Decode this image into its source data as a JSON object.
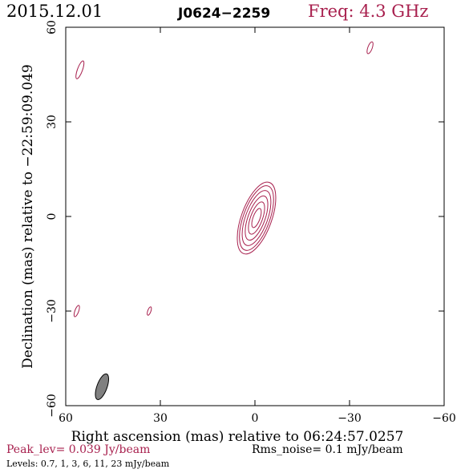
{
  "header": {
    "date": "2015.12.01",
    "source": "J0624−2259",
    "freq": "Freq: 4.3 GHz"
  },
  "footer": {
    "peak": "Peak_lev=  0.039 Jy/beam",
    "rms": "Rms_noise=  0.1 mJy/beam",
    "levels": "Levels: 0.7,   1,   3,   6,  11,  23 mJy/beam"
  },
  "colors": {
    "contour": "#a8204e",
    "beam": "#808080",
    "axis": "#000000"
  },
  "chart_data": {
    "type": "contour",
    "xlabel": "Right ascension (mas) relative to 06:24:57.0257",
    "ylabel": "Declination (mas) relative to −22:59:09.049",
    "xlim": [
      60,
      -60
    ],
    "ylim": [
      -60,
      60
    ],
    "xticks": [
      60,
      30,
      0,
      -30,
      -60
    ],
    "yticks": [
      -60,
      -30,
      0,
      30,
      60
    ],
    "xtick_labels": [
      "60",
      "30",
      "0",
      "−30",
      "−60"
    ],
    "ytick_labels": [
      "−60",
      "−30",
      "0",
      "30",
      "60"
    ],
    "levels_mJy": [
      0.7,
      1,
      3,
      6,
      11,
      23
    ],
    "peak_Jy_per_beam": 0.039,
    "rms_mJy_per_beam": 0.1,
    "main_component": {
      "x": -0.5,
      "y": -0.5,
      "pa_deg": 160,
      "contours": [
        {
          "level": 0.7,
          "a": 12.0,
          "b": 4.8
        },
        {
          "level": 1,
          "a": 10.8,
          "b": 4.2
        },
        {
          "level": 3,
          "a": 9.2,
          "b": 3.5
        },
        {
          "level": 6,
          "a": 7.4,
          "b": 2.7
        },
        {
          "level": 11,
          "a": 5.4,
          "b": 1.9
        },
        {
          "level": 23,
          "a": 3.2,
          "b": 1.1
        }
      ]
    },
    "minor_components": [
      {
        "x": 55.5,
        "y": 46.5,
        "a": 3.0,
        "b": 0.8,
        "pa_deg": 160
      },
      {
        "x": -36.5,
        "y": 53.5,
        "a": 2.0,
        "b": 0.7,
        "pa_deg": 160
      },
      {
        "x": 56.5,
        "y": -30.0,
        "a": 1.9,
        "b": 0.6,
        "pa_deg": 160
      },
      {
        "x": 33.5,
        "y": -30.0,
        "a": 1.4,
        "b": 0.5,
        "pa_deg": 160
      }
    ],
    "beam": {
      "x": 48.5,
      "y": -54.0,
      "a": 4.3,
      "b": 1.6,
      "pa_deg": 160
    }
  }
}
